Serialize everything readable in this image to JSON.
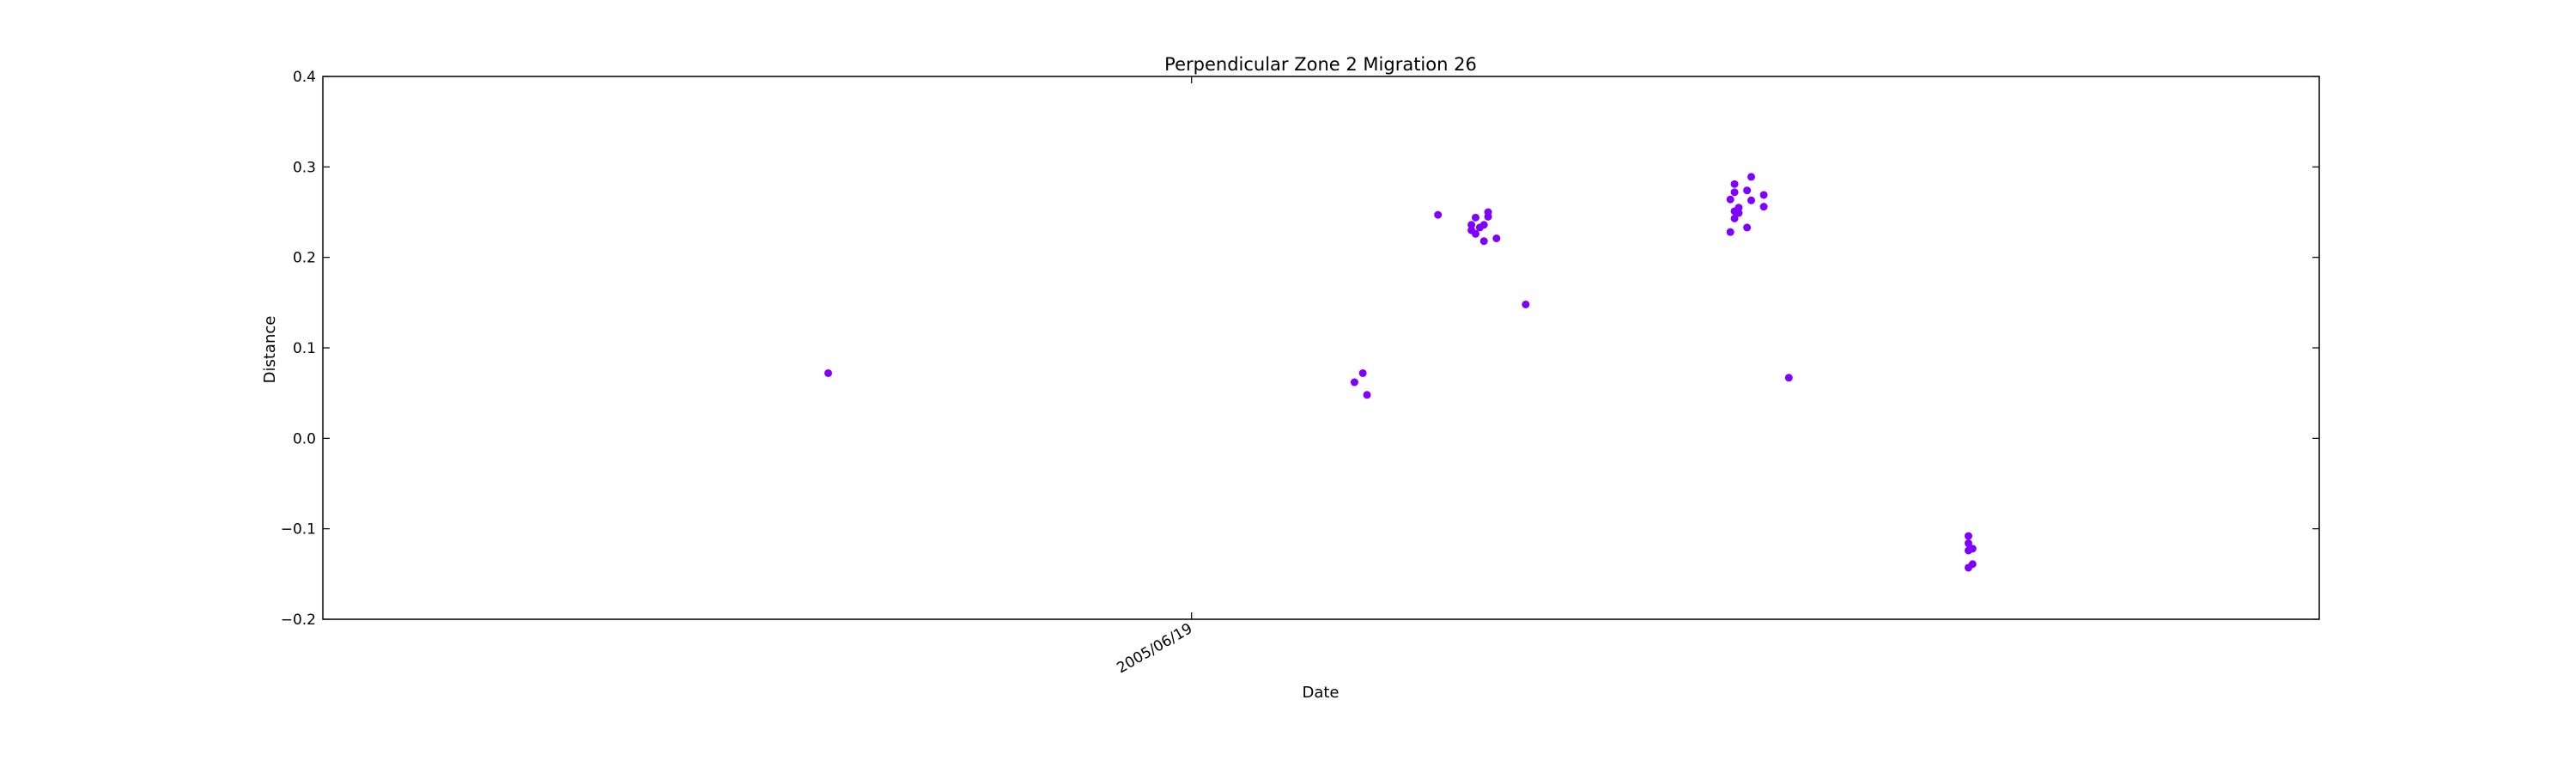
{
  "chart_data": {
    "type": "scatter",
    "title": "Perpendicular Zone 2 Migration 26",
    "xlabel": "Date",
    "ylabel": "Distance",
    "x_unit": "date",
    "xlim": [
      "2004-11-23",
      "2006-03-16"
    ],
    "ylim": [
      -0.2,
      0.4
    ],
    "y_ticks": [
      -0.2,
      -0.1,
      0.0,
      0.1,
      0.2,
      0.3,
      0.4
    ],
    "y_tick_labels": [
      "−0.2",
      "−0.1",
      "0.0",
      "0.1",
      "0.2",
      "0.3",
      "0.4"
    ],
    "x_ticks": [
      "2005-06-19"
    ],
    "x_tick_labels": [
      "2005/06/19"
    ],
    "grid": false,
    "legend": "none",
    "marker_color": "#7f00ff",
    "series": [
      {
        "points": [
          {
            "x": "2005-03-24",
            "y": 0.072
          },
          {
            "x": "2005-07-28",
            "y": 0.062
          },
          {
            "x": "2005-07-30",
            "y": 0.072
          },
          {
            "x": "2005-07-31",
            "y": 0.048
          },
          {
            "x": "2005-08-17",
            "y": 0.247
          },
          {
            "x": "2005-08-25",
            "y": 0.236
          },
          {
            "x": "2005-08-25",
            "y": 0.23
          },
          {
            "x": "2005-08-26",
            "y": 0.244
          },
          {
            "x": "2005-08-26",
            "y": 0.226
          },
          {
            "x": "2005-08-27",
            "y": 0.233
          },
          {
            "x": "2005-08-28",
            "y": 0.236
          },
          {
            "x": "2005-08-28",
            "y": 0.218
          },
          {
            "x": "2005-08-29",
            "y": 0.25
          },
          {
            "x": "2005-08-29",
            "y": 0.245
          },
          {
            "x": "2005-08-31",
            "y": 0.221
          },
          {
            "x": "2005-09-07",
            "y": 0.148
          },
          {
            "x": "2005-10-26",
            "y": 0.264
          },
          {
            "x": "2005-10-26",
            "y": 0.228
          },
          {
            "x": "2005-10-27",
            "y": 0.272
          },
          {
            "x": "2005-10-27",
            "y": 0.281
          },
          {
            "x": "2005-10-27",
            "y": 0.251
          },
          {
            "x": "2005-10-27",
            "y": 0.243
          },
          {
            "x": "2005-10-28",
            "y": 0.255
          },
          {
            "x": "2005-10-28",
            "y": 0.249
          },
          {
            "x": "2005-10-30",
            "y": 0.274
          },
          {
            "x": "2005-10-30",
            "y": 0.233
          },
          {
            "x": "2005-10-31",
            "y": 0.263
          },
          {
            "x": "2005-10-31",
            "y": 0.289
          },
          {
            "x": "2005-11-03",
            "y": 0.269
          },
          {
            "x": "2005-11-03",
            "y": 0.256
          },
          {
            "x": "2005-11-09",
            "y": 0.067
          },
          {
            "x": "2005-12-22",
            "y": -0.108
          },
          {
            "x": "2005-12-22",
            "y": -0.116
          },
          {
            "x": "2005-12-22",
            "y": -0.124
          },
          {
            "x": "2005-12-22",
            "y": -0.143
          },
          {
            "x": "2005-12-23",
            "y": -0.122
          },
          {
            "x": "2005-12-23",
            "y": -0.139
          }
        ]
      }
    ]
  }
}
